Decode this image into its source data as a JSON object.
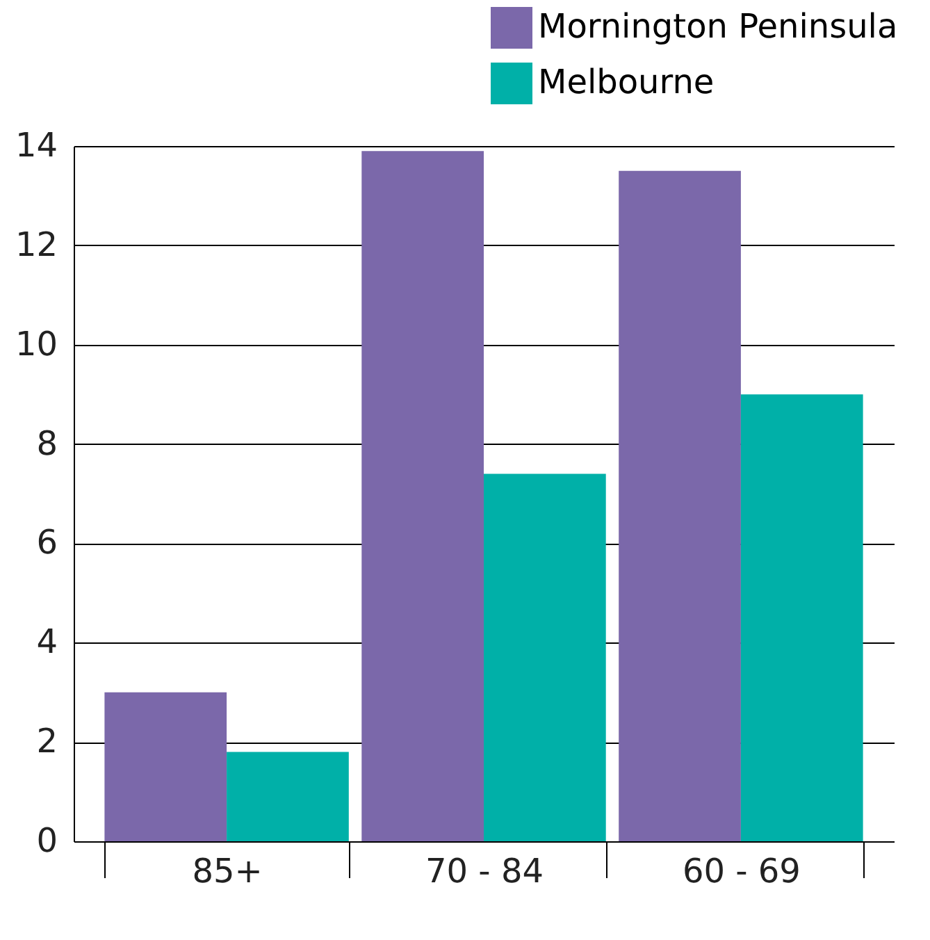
{
  "chart_data": {
    "type": "bar",
    "categories": [
      "85+",
      "70 - 84",
      "60 - 69"
    ],
    "series": [
      {
        "name": "Mornington Peninsula",
        "color": "#7b68aa",
        "values": [
          3.0,
          13.9,
          13.5
        ]
      },
      {
        "name": "Melbourne",
        "color": "#00b0a8",
        "values": [
          1.8,
          7.4,
          9.0
        ]
      }
    ],
    "ylim": [
      0,
      14
    ],
    "yticks": [
      0,
      2,
      4,
      6,
      8,
      10,
      12,
      14
    ],
    "grid": "y",
    "legend": "top right"
  }
}
